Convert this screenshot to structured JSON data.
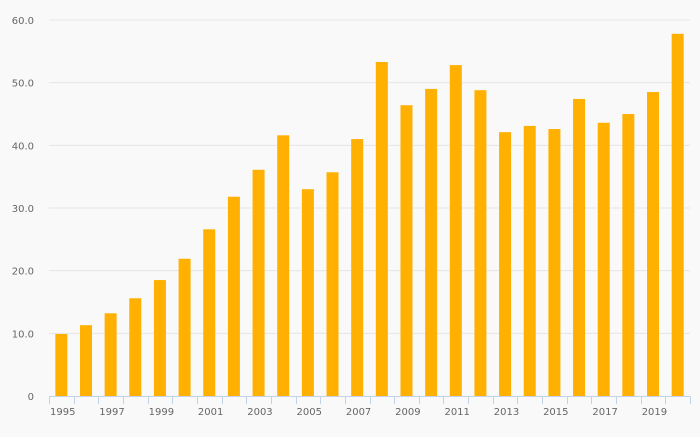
{
  "chart_data": {
    "type": "bar",
    "title": "",
    "xlabel": "",
    "ylabel": "",
    "ylim": [
      0,
      60
    ],
    "yticks": [
      "0",
      "10.0",
      "20.0",
      "30.0",
      "40.0",
      "50.0",
      "60.0"
    ],
    "grid": true,
    "categories": [
      "1995",
      "1996",
      "1997",
      "1998",
      "1999",
      "2000",
      "2001",
      "2002",
      "2003",
      "2004",
      "2005",
      "2006",
      "2007",
      "2008",
      "2009",
      "2010",
      "2011",
      "2012",
      "2013",
      "2014",
      "2015",
      "2016",
      "2017",
      "2018",
      "2019",
      "2020"
    ],
    "xtick_labels": [
      "1995",
      "1997",
      "1999",
      "2001",
      "2003",
      "2005",
      "2007",
      "2009",
      "2011",
      "2013",
      "2015",
      "2017",
      "2019"
    ],
    "values": [
      9.9,
      11.3,
      13.2,
      15.6,
      18.5,
      21.9,
      26.6,
      31.8,
      36.1,
      41.6,
      33.0,
      35.7,
      41.0,
      53.3,
      46.4,
      49.0,
      52.8,
      48.8,
      42.1,
      43.1,
      42.6,
      47.4,
      43.6,
      45.0,
      48.5,
      57.8
    ],
    "bar_color": "#ffb000"
  }
}
